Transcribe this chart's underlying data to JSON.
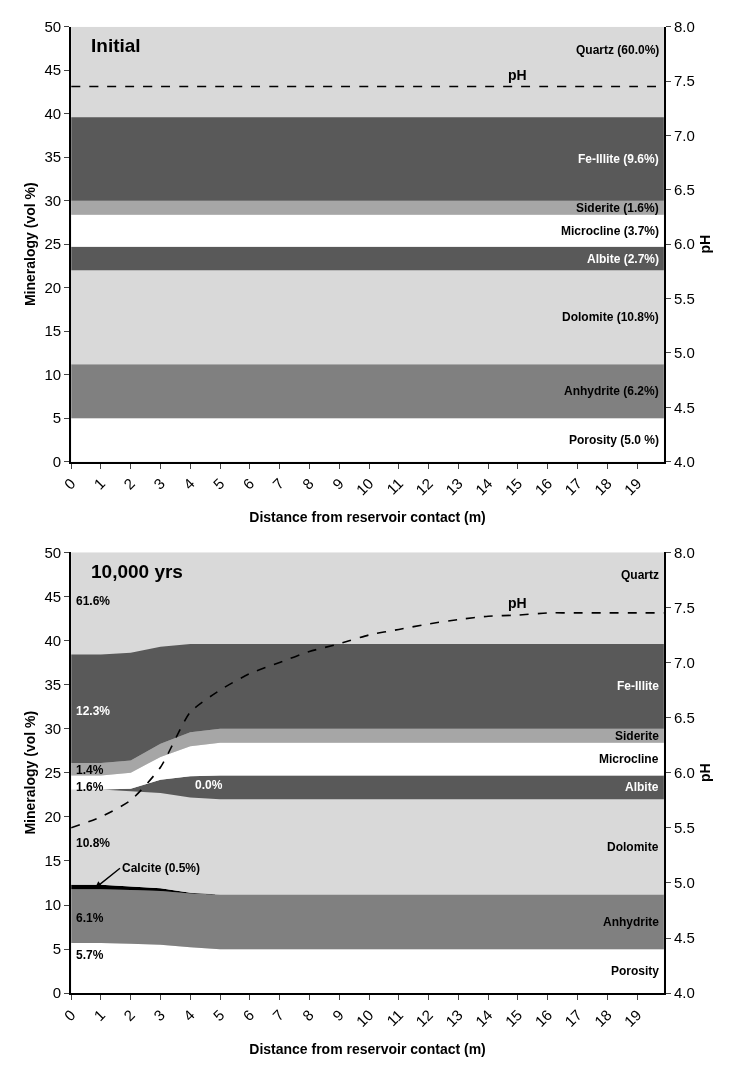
{
  "chart_data": [
    {
      "type": "area",
      "stacked": true,
      "title": "Initial",
      "xlabel": "Distance from reservoir contact (m)",
      "ylabel": "Mineralogy (vol %)",
      "y2label": "pH",
      "x": [
        0,
        1,
        2,
        3,
        4,
        5,
        6,
        7,
        8,
        9,
        10,
        11,
        12,
        13,
        14,
        15,
        16,
        17,
        18,
        19,
        19.9
      ],
      "xlim": [
        0,
        19.9
      ],
      "xticks": [
        0,
        1,
        2,
        3,
        4,
        5,
        6,
        7,
        8,
        9,
        10,
        11,
        12,
        13,
        14,
        15,
        16,
        17,
        18,
        19
      ],
      "ylim": [
        0,
        50
      ],
      "yticks": [
        0,
        5,
        10,
        15,
        20,
        25,
        30,
        35,
        40,
        45,
        50
      ],
      "y2lim": [
        4,
        8
      ],
      "y2ticks": [
        {
          "value": 4,
          "label": "4.0"
        },
        {
          "value": 4.5,
          "label": "4.5"
        },
        {
          "value": 5,
          "label": "5.0"
        },
        {
          "value": 5.5,
          "label": "5.5"
        },
        {
          "value": 6,
          "label": "6.0"
        },
        {
          "value": 6.5,
          "label": "6.5"
        },
        {
          "value": 7,
          "label": "7.0"
        },
        {
          "value": 7.5,
          "label": "7.5"
        },
        {
          "value": 8,
          "label": "8.0"
        }
      ],
      "bands": [
        {
          "axis": "y",
          "from": 0,
          "to": 50,
          "label": "Quartz (60.0%)",
          "color": "#d9d9d9"
        }
      ],
      "series": [
        {
          "name": "Porosity (5.0 %)",
          "color": "#ffffff",
          "values": [
            5,
            5,
            5,
            5,
            5,
            5,
            5,
            5,
            5,
            5,
            5,
            5,
            5,
            5,
            5,
            5,
            5,
            5,
            5,
            5,
            5
          ]
        },
        {
          "name": "Anhydrite (6.2%)",
          "color": "#808080",
          "values": [
            6.2,
            6.2,
            6.2,
            6.2,
            6.2,
            6.2,
            6.2,
            6.2,
            6.2,
            6.2,
            6.2,
            6.2,
            6.2,
            6.2,
            6.2,
            6.2,
            6.2,
            6.2,
            6.2,
            6.2,
            6.2
          ]
        },
        {
          "name": "Dolomite (10.8%)",
          "color": "#d9d9d9",
          "values": [
            10.8,
            10.8,
            10.8,
            10.8,
            10.8,
            10.8,
            10.8,
            10.8,
            10.8,
            10.8,
            10.8,
            10.8,
            10.8,
            10.8,
            10.8,
            10.8,
            10.8,
            10.8,
            10.8,
            10.8,
            10.8
          ]
        },
        {
          "name": "Albite (2.7%)",
          "color": "#595959",
          "values": [
            2.7,
            2.7,
            2.7,
            2.7,
            2.7,
            2.7,
            2.7,
            2.7,
            2.7,
            2.7,
            2.7,
            2.7,
            2.7,
            2.7,
            2.7,
            2.7,
            2.7,
            2.7,
            2.7,
            2.7,
            2.7
          ]
        },
        {
          "name": "Microcline (3.7%)",
          "color": "#ffffff",
          "values": [
            3.7,
            3.7,
            3.7,
            3.7,
            3.7,
            3.7,
            3.7,
            3.7,
            3.7,
            3.7,
            3.7,
            3.7,
            3.7,
            3.7,
            3.7,
            3.7,
            3.7,
            3.7,
            3.7,
            3.7,
            3.7
          ]
        },
        {
          "name": "Siderite (1.6%)",
          "color": "#a6a6a6",
          "values": [
            1.6,
            1.6,
            1.6,
            1.6,
            1.6,
            1.6,
            1.6,
            1.6,
            1.6,
            1.6,
            1.6,
            1.6,
            1.6,
            1.6,
            1.6,
            1.6,
            1.6,
            1.6,
            1.6,
            1.6,
            1.6
          ]
        },
        {
          "name": "Fe-Illite (9.6%)",
          "color": "#595959",
          "values": [
            9.6,
            9.6,
            9.6,
            9.6,
            9.6,
            9.6,
            9.6,
            9.6,
            9.6,
            9.6,
            9.6,
            9.6,
            9.6,
            9.6,
            9.6,
            9.6,
            9.6,
            9.6,
            9.6,
            9.6,
            9.6
          ]
        },
        {
          "name": "pH",
          "type": "line",
          "axis": "y2",
          "line_style": "dashed",
          "color": "#000000",
          "values": [
            7.45,
            7.45,
            7.45,
            7.45,
            7.45,
            7.45,
            7.45,
            7.45,
            7.45,
            7.45,
            7.45,
            7.45,
            7.45,
            7.45,
            7.45,
            7.45,
            7.45,
            7.45,
            7.45,
            7.45,
            7.45
          ]
        }
      ]
    },
    {
      "type": "area",
      "stacked": true,
      "title": "10,000 yrs",
      "xlabel": "Distance from reservoir contact (m)",
      "ylabel": "Mineralogy (vol %)",
      "y2label": "pH",
      "x": [
        0,
        1,
        2,
        3,
        4,
        5,
        6,
        7,
        8,
        9,
        10,
        11,
        12,
        13,
        14,
        15,
        16,
        17,
        18,
        19,
        19.9
      ],
      "xlim": [
        0,
        19.9
      ],
      "xticks": [
        0,
        1,
        2,
        3,
        4,
        5,
        6,
        7,
        8,
        9,
        10,
        11,
        12,
        13,
        14,
        15,
        16,
        17,
        18,
        19
      ],
      "ylim": [
        0,
        50
      ],
      "yticks": [
        0,
        5,
        10,
        15,
        20,
        25,
        30,
        35,
        40,
        45,
        50
      ],
      "y2lim": [
        4,
        8
      ],
      "y2ticks": [
        {
          "value": 4,
          "label": "4.0"
        },
        {
          "value": 4.5,
          "label": "4.5"
        },
        {
          "value": 5,
          "label": "5.0"
        },
        {
          "value": 5.5,
          "label": "5.5"
        },
        {
          "value": 6,
          "label": "6.0"
        },
        {
          "value": 6.5,
          "label": "6.5"
        },
        {
          "value": 7,
          "label": "7.0"
        },
        {
          "value": 7.5,
          "label": "7.5"
        },
        {
          "value": 8,
          "label": "8.0"
        }
      ],
      "bands": [
        {
          "axis": "y",
          "from": 0,
          "to": 50,
          "label": "Quartz",
          "color": "#d9d9d9"
        }
      ],
      "series": [
        {
          "name": "Porosity",
          "color": "#ffffff",
          "values": [
            5.7,
            5.7,
            5.6,
            5.5,
            5.2,
            5,
            5,
            5,
            5,
            5,
            5,
            5,
            5,
            5,
            5,
            5,
            5,
            5,
            5,
            5,
            5
          ]
        },
        {
          "name": "Anhydrite",
          "color": "#808080",
          "values": [
            6.1,
            6.1,
            6.1,
            6.1,
            6.1,
            6.2,
            6.2,
            6.2,
            6.2,
            6.2,
            6.2,
            6.2,
            6.2,
            6.2,
            6.2,
            6.2,
            6.2,
            6.2,
            6.2,
            6.2,
            6.2
          ]
        },
        {
          "color": "#000000",
          "values": [
            0.5,
            0.5,
            0.4,
            0.3,
            0.1,
            0,
            0,
            0,
            0,
            0,
            0,
            0,
            0,
            0,
            0,
            0,
            0,
            0,
            0,
            0,
            0
          ]
        },
        {
          "name": "Dolomite",
          "color": "#d9d9d9",
          "values": [
            10.8,
            10.8,
            10.8,
            10.8,
            10.8,
            10.8,
            10.8,
            10.8,
            10.8,
            10.8,
            10.8,
            10.8,
            10.8,
            10.8,
            10.8,
            10.8,
            10.8,
            10.8,
            10.8,
            10.8,
            10.8
          ]
        },
        {
          "name": "Albite",
          "color": "#595959",
          "values": [
            0,
            0,
            0.3,
            1.5,
            2.4,
            2.7,
            2.7,
            2.7,
            2.7,
            2.7,
            2.7,
            2.7,
            2.7,
            2.7,
            2.7,
            2.7,
            2.7,
            2.7,
            2.7,
            2.7,
            2.7
          ]
        },
        {
          "name": "Microcline",
          "color": "#ffffff",
          "values": [
            1.6,
            1.6,
            1.8,
            2.6,
            3.4,
            3.7,
            3.7,
            3.7,
            3.7,
            3.7,
            3.7,
            3.7,
            3.7,
            3.7,
            3.7,
            3.7,
            3.7,
            3.7,
            3.7,
            3.7,
            3.7
          ]
        },
        {
          "name": "Siderite",
          "color": "#a6a6a6",
          "values": [
            1.4,
            1.4,
            1.4,
            1.5,
            1.6,
            1.6,
            1.6,
            1.6,
            1.6,
            1.6,
            1.6,
            1.6,
            1.6,
            1.6,
            1.6,
            1.6,
            1.6,
            1.6,
            1.6,
            1.6,
            1.6
          ]
        },
        {
          "name": "Fe-Illite",
          "color": "#595959",
          "values": [
            12.3,
            12.3,
            12.2,
            11.0,
            10.0,
            9.6,
            9.6,
            9.6,
            9.6,
            9.6,
            9.6,
            9.6,
            9.6,
            9.6,
            9.6,
            9.6,
            9.6,
            9.6,
            9.6,
            9.6,
            9.6
          ]
        },
        {
          "name": "pH",
          "type": "line",
          "axis": "y2",
          "line_style": "dashed",
          "color": "#000000",
          "values": [
            5.5,
            5.6,
            5.75,
            6.05,
            6.55,
            6.75,
            6.9,
            7.0,
            7.1,
            7.17,
            7.25,
            7.3,
            7.35,
            7.39,
            7.42,
            7.43,
            7.45,
            7.45,
            7.45,
            7.45,
            7.45
          ]
        }
      ],
      "annotations": [
        {
          "text": "61.6%",
          "x": 0,
          "y": 44.5
        },
        {
          "text": "12.3%",
          "x": 0,
          "y": 32
        },
        {
          "text": "1.4%",
          "x": 0,
          "y": 25.3
        },
        {
          "text": "1.6%",
          "x": 0,
          "y": 23.4
        },
        {
          "text": "0.0%",
          "x": 4,
          "y": 22.2
        },
        {
          "text": "10.8%",
          "x": 0,
          "y": 17
        },
        {
          "text": "Calcite (0.5%)",
          "x": 0.8,
          "y": 11.9
        },
        {
          "text": "6.1%",
          "x": 0,
          "y": 8.5
        },
        {
          "text": "5.7%",
          "x": 0,
          "y": 4.3
        }
      ]
    }
  ]
}
